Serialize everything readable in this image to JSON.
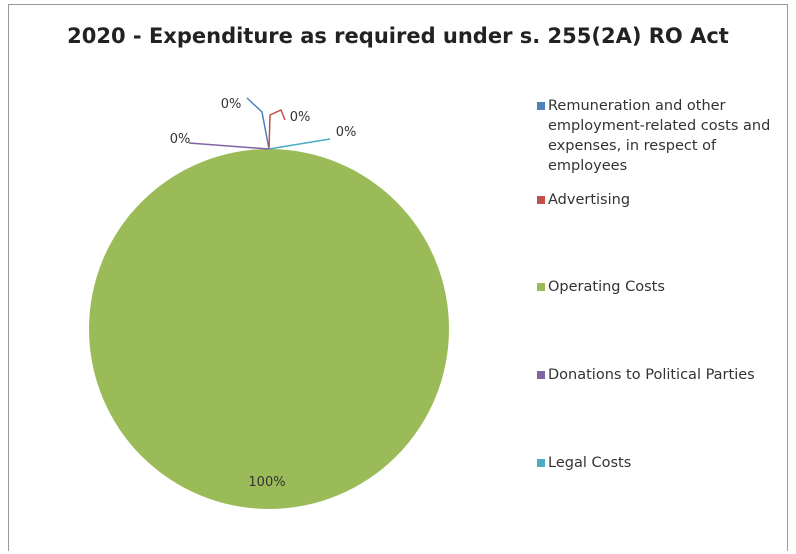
{
  "chart_data": {
    "type": "pie",
    "title": "2020 - Expenditure as required under s. 255(2A) RO Act",
    "categories": [
      "Remuneration and other employment-related costs and expenses, in respect of employees",
      "Advertising",
      "Operating Costs",
      "Donations to Political Parties",
      "Legal Costs"
    ],
    "values": [
      0,
      0,
      100,
      0,
      0
    ],
    "data_labels": [
      "0%",
      "0%",
      "100%",
      "0%",
      "0%"
    ],
    "colors": [
      "#4f81bd",
      "#c0504d",
      "#9bbb59",
      "#8064a2",
      "#4bacc6"
    ],
    "legend_position": "right"
  }
}
